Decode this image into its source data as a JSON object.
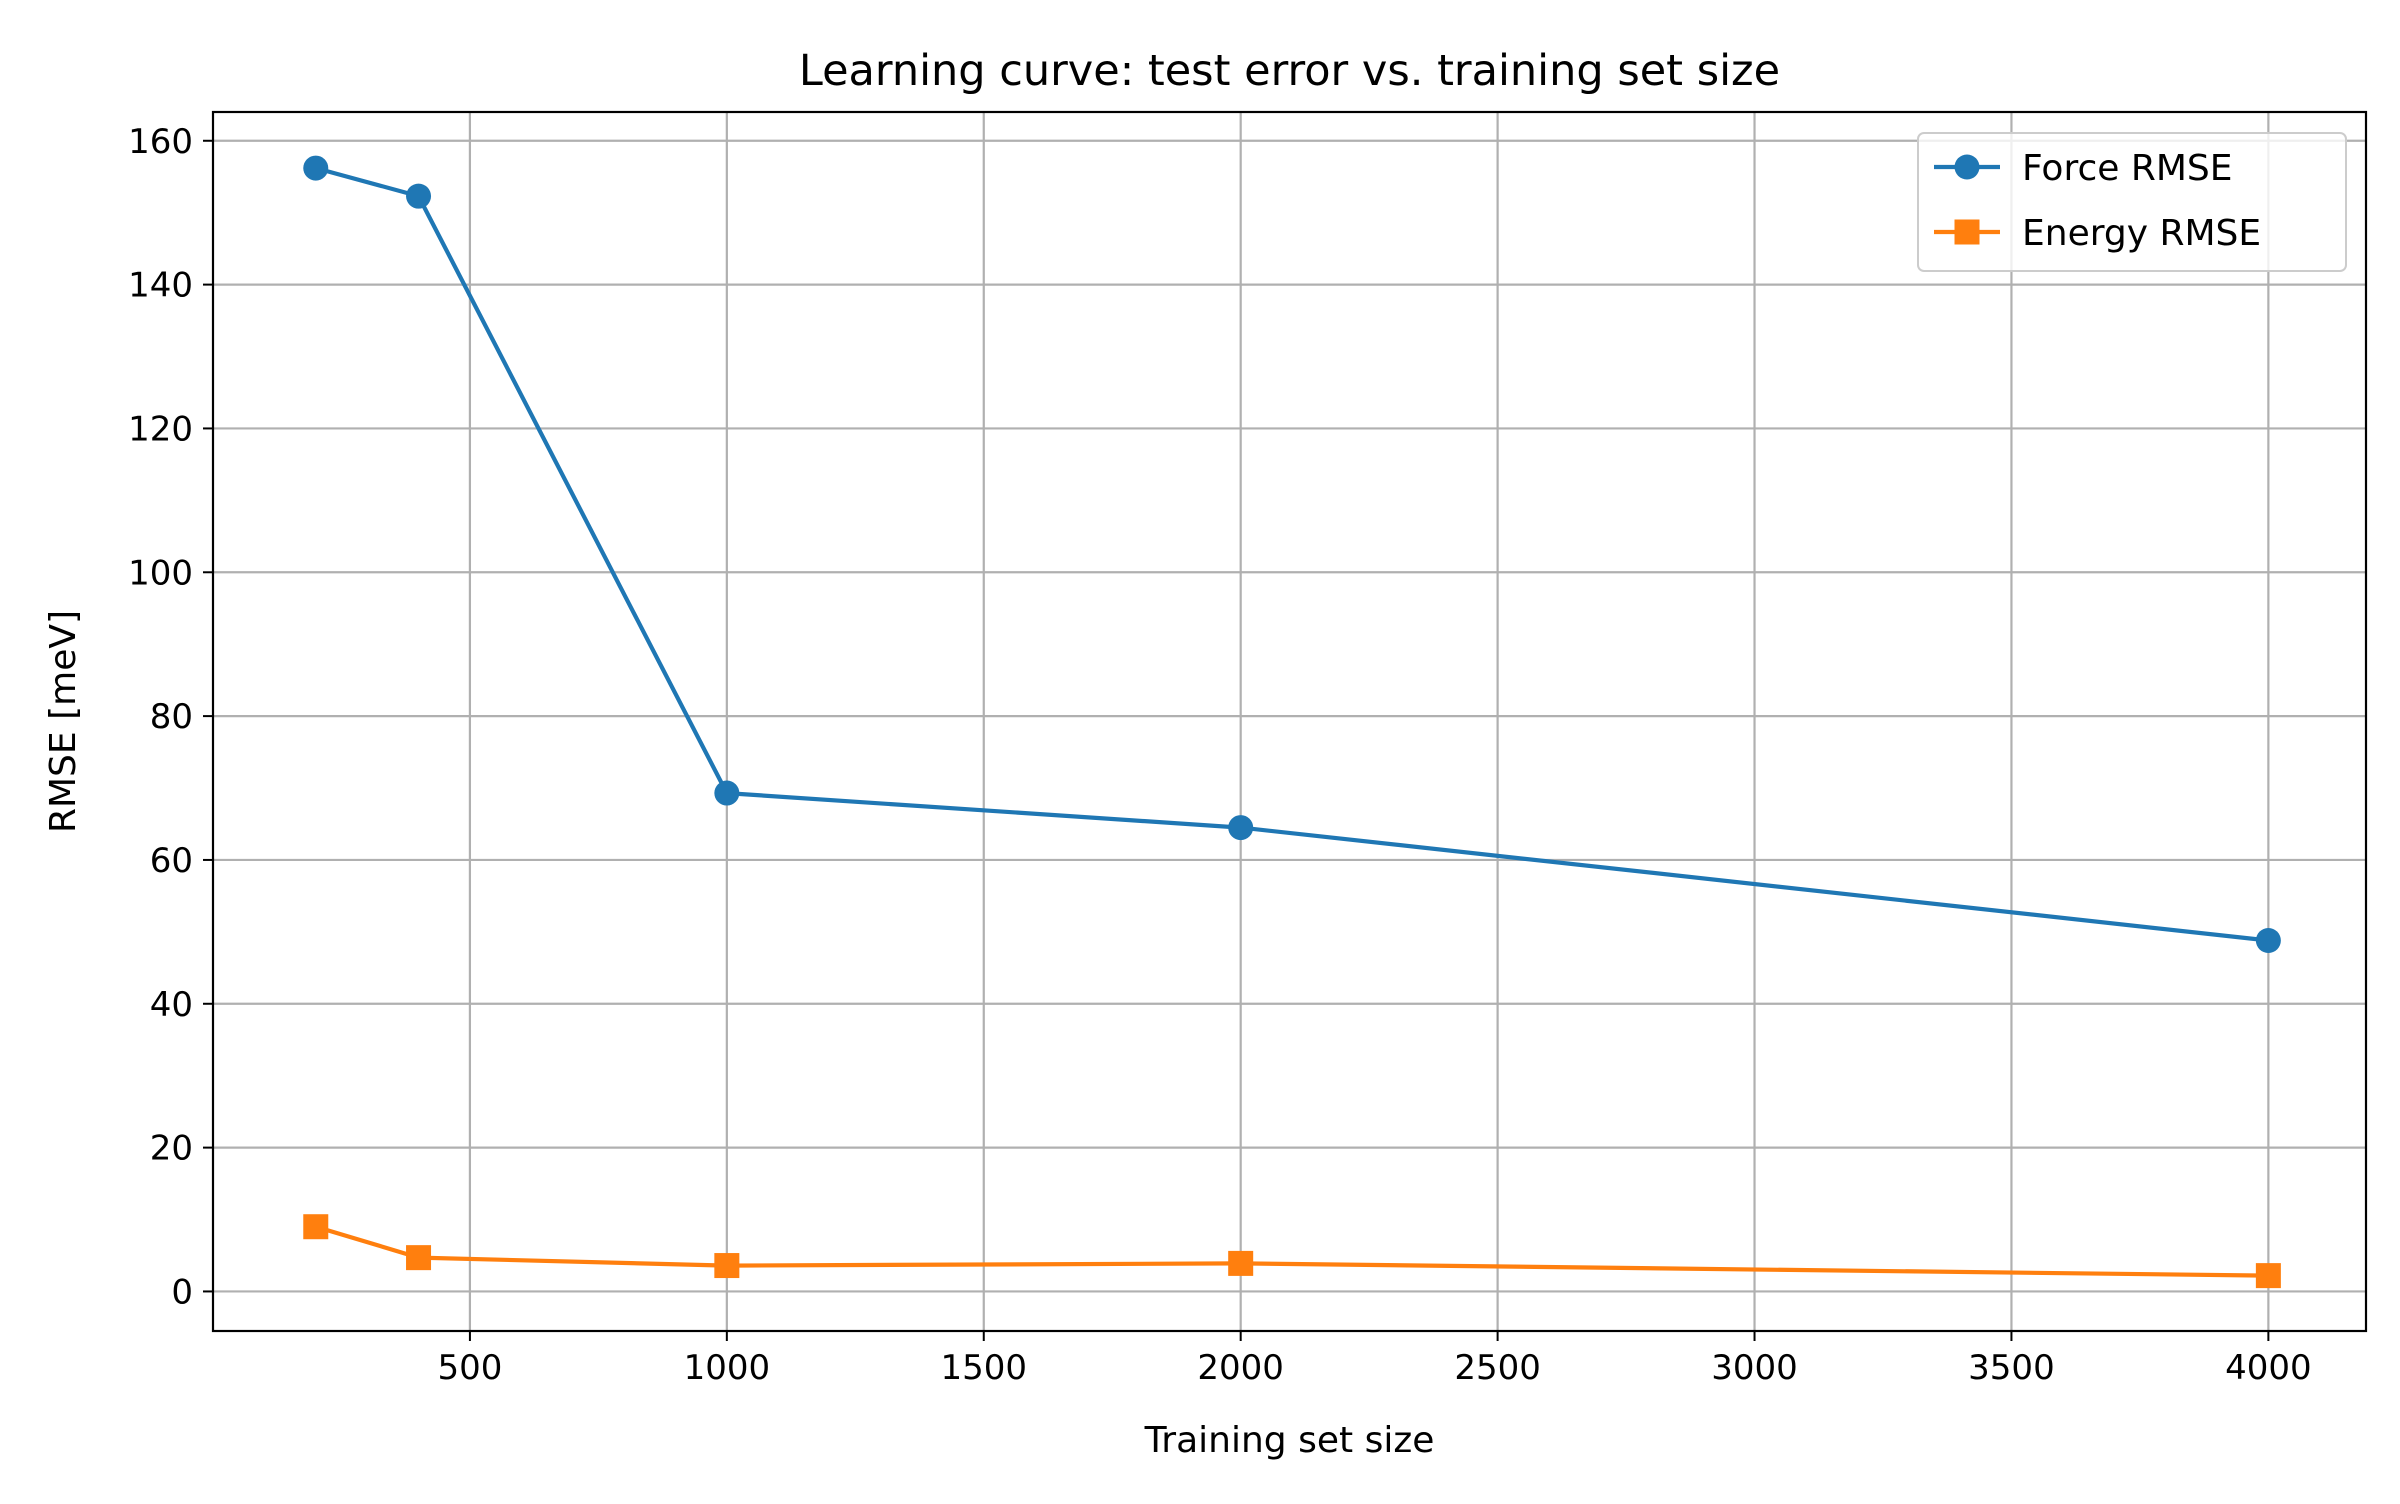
{
  "chart_data": {
    "type": "line",
    "title": "Learning curve: test error vs. training set size",
    "xlabel": "Training set size",
    "ylabel": "RMSE [meV]",
    "xlim": [
      0,
      4190
    ],
    "ylim": [
      -5.5,
      164
    ],
    "x_ticks": [
      500,
      1000,
      1500,
      2000,
      2500,
      3000,
      3500,
      4000
    ],
    "y_ticks": [
      0,
      20,
      40,
      60,
      80,
      100,
      120,
      140,
      160
    ],
    "grid": true,
    "legend_position": "top-right",
    "x": [
      200,
      400,
      1000,
      2000,
      4000
    ],
    "series": [
      {
        "name": "Force RMSE",
        "values": [
          156.2,
          152.3,
          69.3,
          64.5,
          48.8
        ],
        "color": "#1f77b4",
        "marker": "circle"
      },
      {
        "name": "Energy RMSE",
        "values": [
          9.0,
          4.7,
          3.6,
          3.9,
          2.2
        ],
        "color": "#ff7f0e",
        "marker": "square"
      }
    ]
  }
}
